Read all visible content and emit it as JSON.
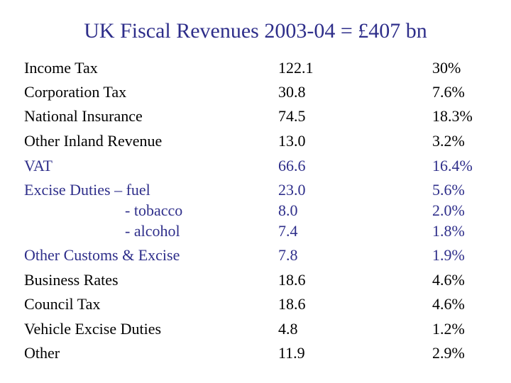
{
  "title": "UK Fiscal Revenues 2003-04 = £407 bn",
  "accent_color": "#2e2e8a",
  "rows": [
    {
      "label": "Income Tax",
      "value": "122.1",
      "percent": "30%"
    },
    {
      "label": "Corporation Tax",
      "value": "30.8",
      "percent": "7.6%"
    },
    {
      "label": "National Insurance",
      "value": "74.5",
      "percent": "18.3%"
    },
    {
      "label": "Other Inland Revenue",
      "value": "13.0",
      "percent": "3.2%"
    },
    {
      "label": "VAT",
      "value": "66.6",
      "percent": "16.4%"
    },
    {
      "label": "Excise Duties – fuel",
      "value": "23.0",
      "percent": "5.6%"
    },
    {
      "label": "- tobacco",
      "value": "8.0",
      "percent": "2.0%"
    },
    {
      "label": "- alcohol",
      "value": "7.4",
      "percent": "1.8%"
    },
    {
      "label": "Other Customs & Excise",
      "value": "7.8",
      "percent": "1.9%"
    },
    {
      "label": "Business Rates",
      "value": "18.6",
      "percent": "4.6%"
    },
    {
      "label": "Council Tax",
      "value": "18.6",
      "percent": "4.6%"
    },
    {
      "label": "Vehicle Excise Duties",
      "value": "4.8",
      "percent": "1.2%"
    },
    {
      "label": "Other",
      "value": "11.9",
      "percent": "2.9%"
    }
  ]
}
